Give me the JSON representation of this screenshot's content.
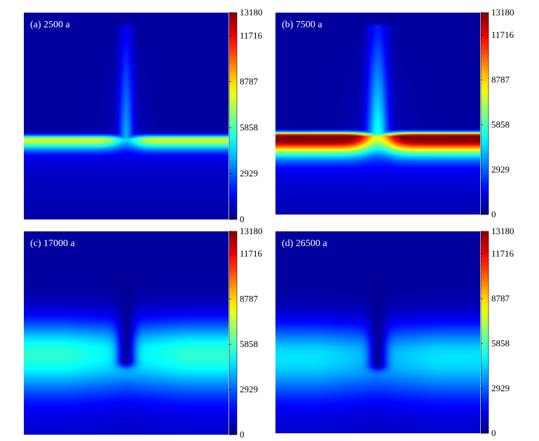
{
  "chart_data": [
    {
      "type": "heatmap",
      "panel_label": "(a) 2500 a",
      "colorbar": {
        "min": 0,
        "max": 13180,
        "ticks": [
          13180,
          11716,
          8787,
          5858,
          2929,
          0
        ]
      },
      "colormap": "jet",
      "description_values": {
        "background": 400,
        "layer_peak": 6600,
        "layer_depth_fraction": 0.61,
        "plume_peak": 3600
      }
    },
    {
      "type": "heatmap",
      "panel_label": "(b) 7500 a",
      "colorbar": {
        "min": 0,
        "max": 13180,
        "ticks": [
          13180,
          11716,
          8787,
          5858,
          2929,
          0
        ]
      },
      "colormap": "jet",
      "description_values": {
        "background": 400,
        "layer_peak": 12300,
        "layer_depth_fraction": 0.61,
        "plume_peak": 5000
      }
    },
    {
      "type": "heatmap",
      "panel_label": "(c) 17000 a",
      "colorbar": {
        "min": 0,
        "max": 13180,
        "ticks": [
          13180,
          11716,
          8787,
          5858,
          2929,
          0
        ]
      },
      "colormap": "jet",
      "description_values": {
        "background": 400,
        "layer_peak": 5500,
        "layer_depth_fraction": 0.6,
        "plume_peak": 300
      }
    },
    {
      "type": "heatmap",
      "panel_label": "(d) 26500 a",
      "colorbar": {
        "min": 0,
        "max": 13180,
        "ticks": [
          13180,
          11716,
          8787,
          5858,
          2929,
          0
        ]
      },
      "colormap": "jet",
      "description_values": {
        "background": 400,
        "layer_peak": 4600,
        "layer_depth_fraction": 0.62,
        "plume_peak": 300
      }
    }
  ]
}
